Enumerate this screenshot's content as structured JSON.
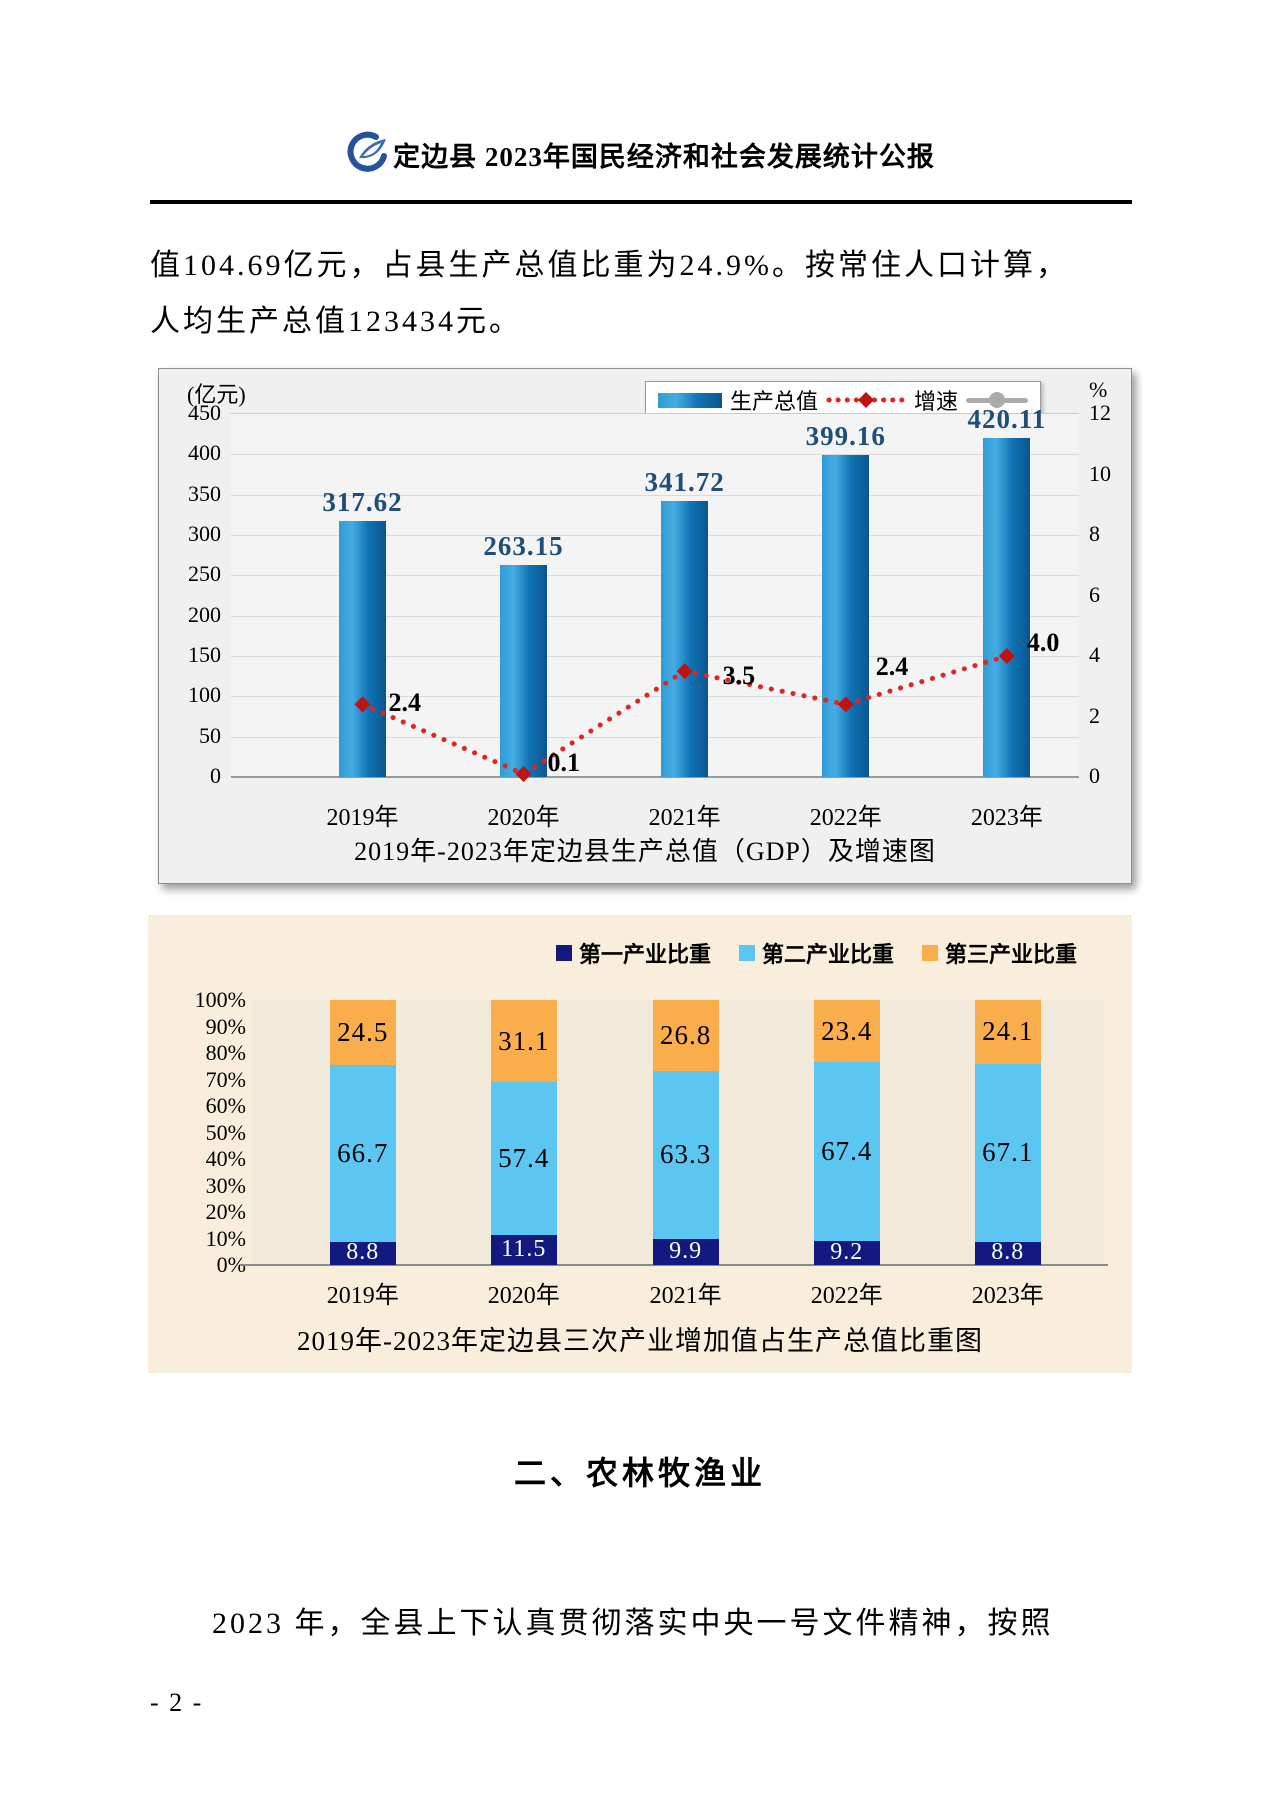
{
  "header": {
    "title": "定边县 2023年国民经济和社会发展统计公报",
    "logo": "blue-swirl-statistics-logo"
  },
  "body_text": {
    "paragraph1_line1": "值104.69亿元，占县生产总值比重为24.9%。按常住人口计算，",
    "paragraph1_line2": "人均生产总值123434元。",
    "section_heading": "二、农林牧渔业",
    "paragraph2": "2023 年，全县上下认真贯彻落实中央一号文件精神，按照"
  },
  "footer": {
    "page_number": "- 2 -"
  },
  "chart_data": [
    {
      "type": "bar",
      "title": "2019年-2023年定边县生产总值（GDP）及增速图",
      "categories": [
        "2019年",
        "2020年",
        "2021年",
        "2022年",
        "2023年"
      ],
      "series": [
        {
          "name": "生产总值",
          "chart_type": "bar",
          "axis": "left",
          "unit": "亿元",
          "values": [
            317.62,
            263.15,
            341.72,
            399.16,
            420.11
          ],
          "color": "#1173B4"
        },
        {
          "name": "增速",
          "chart_type": "line",
          "axis": "right",
          "unit": "%",
          "values": [
            2.4,
            0.1,
            3.5,
            2.4,
            4.0
          ],
          "color": "#E02424"
        }
      ],
      "left_axis": {
        "label": "(亿元)",
        "min": 0,
        "max": 450,
        "step": 50
      },
      "right_axis": {
        "label": "%",
        "min": 0,
        "max": 12,
        "step": 2
      },
      "legend_position": "top-right",
      "grid": true
    },
    {
      "type": "stacked-bar",
      "title": "2019年-2023年定边县三次产业增加值占生产总值比重图",
      "categories": [
        "2019年",
        "2020年",
        "2021年",
        "2022年",
        "2023年"
      ],
      "series": [
        {
          "name": "第一产业比重",
          "values": [
            8.8,
            11.5,
            9.9,
            9.2,
            8.8
          ],
          "color": "#121A80",
          "label_color": "#FFFFFF"
        },
        {
          "name": "第二产业比重",
          "values": [
            66.7,
            57.4,
            63.3,
            67.4,
            67.1
          ],
          "color": "#5CC6F2",
          "label_color": "#000000"
        },
        {
          "name": "第三产业比重",
          "values": [
            24.5,
            31.1,
            26.8,
            23.4,
            24.1
          ],
          "color": "#FAAD4B",
          "label_color": "#000000"
        }
      ],
      "y_axis": {
        "min": 0,
        "max": 100,
        "step": 10,
        "unit": "%"
      },
      "legend_position": "top",
      "grid": false
    }
  ]
}
